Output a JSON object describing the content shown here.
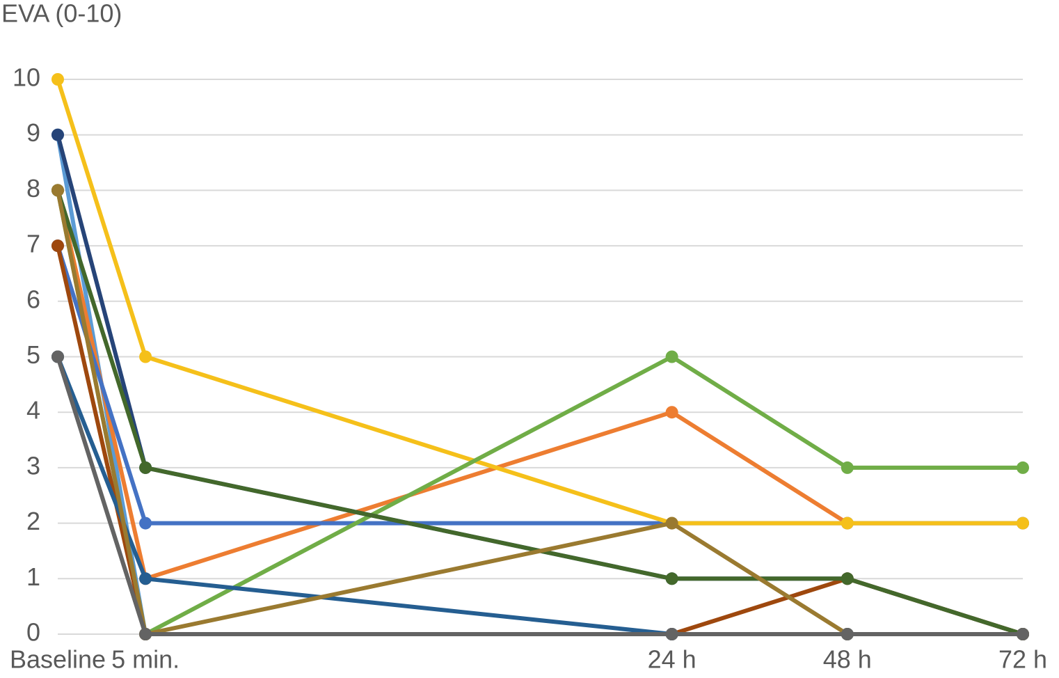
{
  "chart_data": {
    "type": "line",
    "title": "EVA (0-10)",
    "x": [
      0,
      1,
      7,
      9,
      11
    ],
    "xlim": [
      0,
      11
    ],
    "xticks": [
      {
        "value": 0,
        "label": "Baseline"
      },
      {
        "value": 1,
        "label": "5 min."
      },
      {
        "value": 7,
        "label": "24 h"
      },
      {
        "value": 9,
        "label": "48 h"
      },
      {
        "value": 11,
        "label": "72 h"
      }
    ],
    "ylim": [
      0,
      10
    ],
    "yticks": [
      0,
      1,
      2,
      3,
      4,
      5,
      6,
      7,
      8,
      9,
      10
    ],
    "grid": true,
    "series": [
      {
        "color": "#5b9bd5",
        "values": [
          9,
          0,
          0,
          0,
          0
        ]
      },
      {
        "color": "#ed7d31",
        "values": [
          8,
          1,
          4,
          2,
          2
        ]
      },
      {
        "color": "#a5a5a5",
        "values": [
          5,
          0,
          0,
          0,
          0
        ]
      },
      {
        "color": "#4472c4",
        "values": [
          7,
          2,
          2,
          2,
          2
        ]
      },
      {
        "color": "#f5c01a",
        "values": [
          10,
          5,
          2,
          2,
          2
        ]
      },
      {
        "color": "#70ad47",
        "values": [
          8,
          0,
          5,
          3,
          3
        ]
      },
      {
        "color": "#264478",
        "values": [
          9,
          3,
          1,
          1,
          0
        ]
      },
      {
        "color": "#9e480e",
        "values": [
          7,
          0,
          0,
          1,
          0
        ]
      },
      {
        "color": "#255e91",
        "values": [
          5,
          1,
          0,
          0,
          0
        ]
      },
      {
        "color": "#43682b",
        "values": [
          8,
          3,
          1,
          1,
          0
        ]
      },
      {
        "color": "#9a7a30",
        "values": [
          8,
          0,
          2,
          0,
          0
        ]
      },
      {
        "color": "#636363",
        "values": [
          5,
          0,
          0,
          0,
          0
        ]
      }
    ]
  }
}
